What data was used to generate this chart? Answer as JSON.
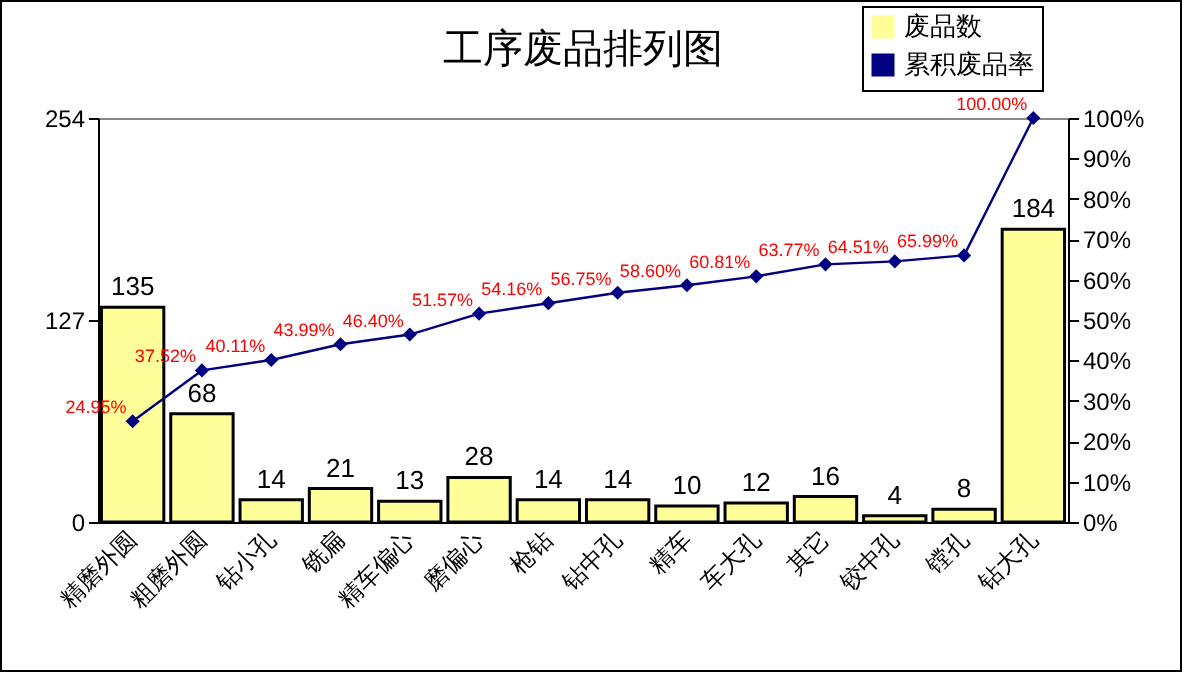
{
  "chart_data": {
    "type": "bar",
    "title": "工序废品排列图",
    "categories": [
      "精磨外圆",
      "粗磨外圆",
      "钻小孔",
      "铣扁",
      "精车偏心",
      "磨偏心",
      "枪钻",
      "钻中孔",
      "精车",
      "车大孔",
      "其它",
      "铰中孔",
      "镗孔",
      "钻大孔"
    ],
    "series": [
      {
        "name": "废品数",
        "color": "#ffff99",
        "values": [
          135,
          68,
          14,
          21,
          13,
          28,
          14,
          14,
          10,
          12,
          16,
          4,
          8,
          184
        ],
        "value_labels": [
          "135",
          "68",
          "14",
          "21",
          "13",
          "28",
          "14",
          "14",
          "10",
          "12",
          "16",
          "4",
          "8",
          "184"
        ]
      },
      {
        "name": "累积废品率",
        "type": "line",
        "axis": "y2",
        "color": "#000080",
        "marker": "diamond",
        "values": [
          24.95,
          37.52,
          40.11,
          43.99,
          46.4,
          51.57,
          54.16,
          56.75,
          58.6,
          60.81,
          63.77,
          64.51,
          65.99,
          100.0
        ],
        "value_labels": [
          "24.95%",
          "37.52%",
          "40.11%",
          "43.99%",
          "46.40%",
          "51.57%",
          "54.16%",
          "56.75%",
          "58.60%",
          "60.81%",
          "63.77%",
          "64.51%",
          "65.99%",
          "100.00%"
        ]
      }
    ],
    "ylim": [
      0,
      254
    ],
    "yticks": [
      0,
      127,
      254
    ],
    "y2lim": [
      0,
      100
    ],
    "y2ticks": [
      {
        "value": 0,
        "label": "0%"
      },
      {
        "value": 10,
        "label": "10%"
      },
      {
        "value": 20,
        "label": "20%"
      },
      {
        "value": 30,
        "label": "30%"
      },
      {
        "value": 40,
        "label": "40%"
      },
      {
        "value": 50,
        "label": "50%"
      },
      {
        "value": 60,
        "label": "60%"
      },
      {
        "value": 70,
        "label": "70%"
      },
      {
        "value": 80,
        "label": "80%"
      },
      {
        "value": 90,
        "label": "90%"
      },
      {
        "value": 100,
        "label": "100%"
      }
    ],
    "legend": "top right",
    "grid": false
  }
}
